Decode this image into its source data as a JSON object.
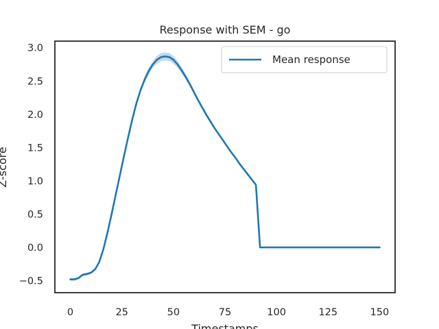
{
  "chart_data": {
    "type": "line",
    "title": "Response with SEM - go",
    "xlabel": "Timestamps",
    "ylabel": "Z-score",
    "xlim": [
      -7.5,
      157.5
    ],
    "ylim": [
      -0.68,
      3.1
    ],
    "xticks": [
      0,
      25,
      50,
      75,
      100,
      125,
      150
    ],
    "yticks": [
      -0.5,
      0.0,
      0.5,
      1.0,
      1.5,
      2.0,
      2.5,
      3.0
    ],
    "xtick_labels": [
      "0",
      "25",
      "50",
      "75",
      "100",
      "125",
      "150"
    ],
    "ytick_labels": [
      "−0.5",
      "0.0",
      "0.5",
      "1.0",
      "1.5",
      "2.0",
      "2.5",
      "3.0"
    ],
    "grid": false,
    "legend_position": "top-right",
    "colors": {
      "line": "#1f77b4",
      "band": "#a9c8e4",
      "axes": "#262626"
    },
    "series": [
      {
        "name": "Mean response",
        "x": [
          0,
          2,
          4,
          6,
          8,
          10,
          12,
          14,
          16,
          18,
          20,
          22,
          24,
          26,
          28,
          30,
          32,
          34,
          36,
          38,
          40,
          42,
          44,
          46,
          48,
          50,
          52,
          54,
          56,
          58,
          60,
          62,
          64,
          66,
          68,
          70,
          72,
          74,
          76,
          78,
          80,
          82,
          84,
          86,
          88,
          90,
          92,
          94,
          96,
          98,
          100,
          101,
          102,
          110,
          120,
          130,
          140,
          150
        ],
        "y": [
          -0.48,
          -0.48,
          -0.46,
          -0.41,
          -0.4,
          -0.38,
          -0.33,
          -0.22,
          -0.03,
          0.22,
          0.5,
          0.79,
          1.08,
          1.37,
          1.65,
          1.92,
          2.16,
          2.36,
          2.52,
          2.65,
          2.75,
          2.82,
          2.86,
          2.87,
          2.86,
          2.82,
          2.75,
          2.66,
          2.56,
          2.45,
          2.33,
          2.21,
          2.1,
          1.99,
          1.89,
          1.79,
          1.7,
          1.61,
          1.52,
          1.43,
          1.35,
          1.26,
          1.18,
          1.1,
          1.02,
          0.94,
          0.0,
          0.0,
          0.0,
          0.0,
          0.0,
          0.0,
          0.0,
          0.0,
          0.0,
          0.0,
          0.0,
          0.0
        ],
        "sem": [
          0.02,
          0.02,
          0.02,
          0.02,
          0.02,
          0.02,
          0.02,
          0.02,
          0.02,
          0.03,
          0.03,
          0.03,
          0.03,
          0.03,
          0.03,
          0.04,
          0.04,
          0.04,
          0.05,
          0.05,
          0.05,
          0.06,
          0.06,
          0.06,
          0.06,
          0.06,
          0.05,
          0.05,
          0.04,
          0.04,
          0.03,
          0.03,
          0.03,
          0.03,
          0.03,
          0.02,
          0.02,
          0.02,
          0.02,
          0.02,
          0.02,
          0.02,
          0.02,
          0.02,
          0.02,
          0.02,
          0.0,
          0.0,
          0.0,
          0.0,
          0.0,
          0.0,
          0.0,
          0.0,
          0.0,
          0.0,
          0.0,
          0.0
        ]
      }
    ]
  }
}
